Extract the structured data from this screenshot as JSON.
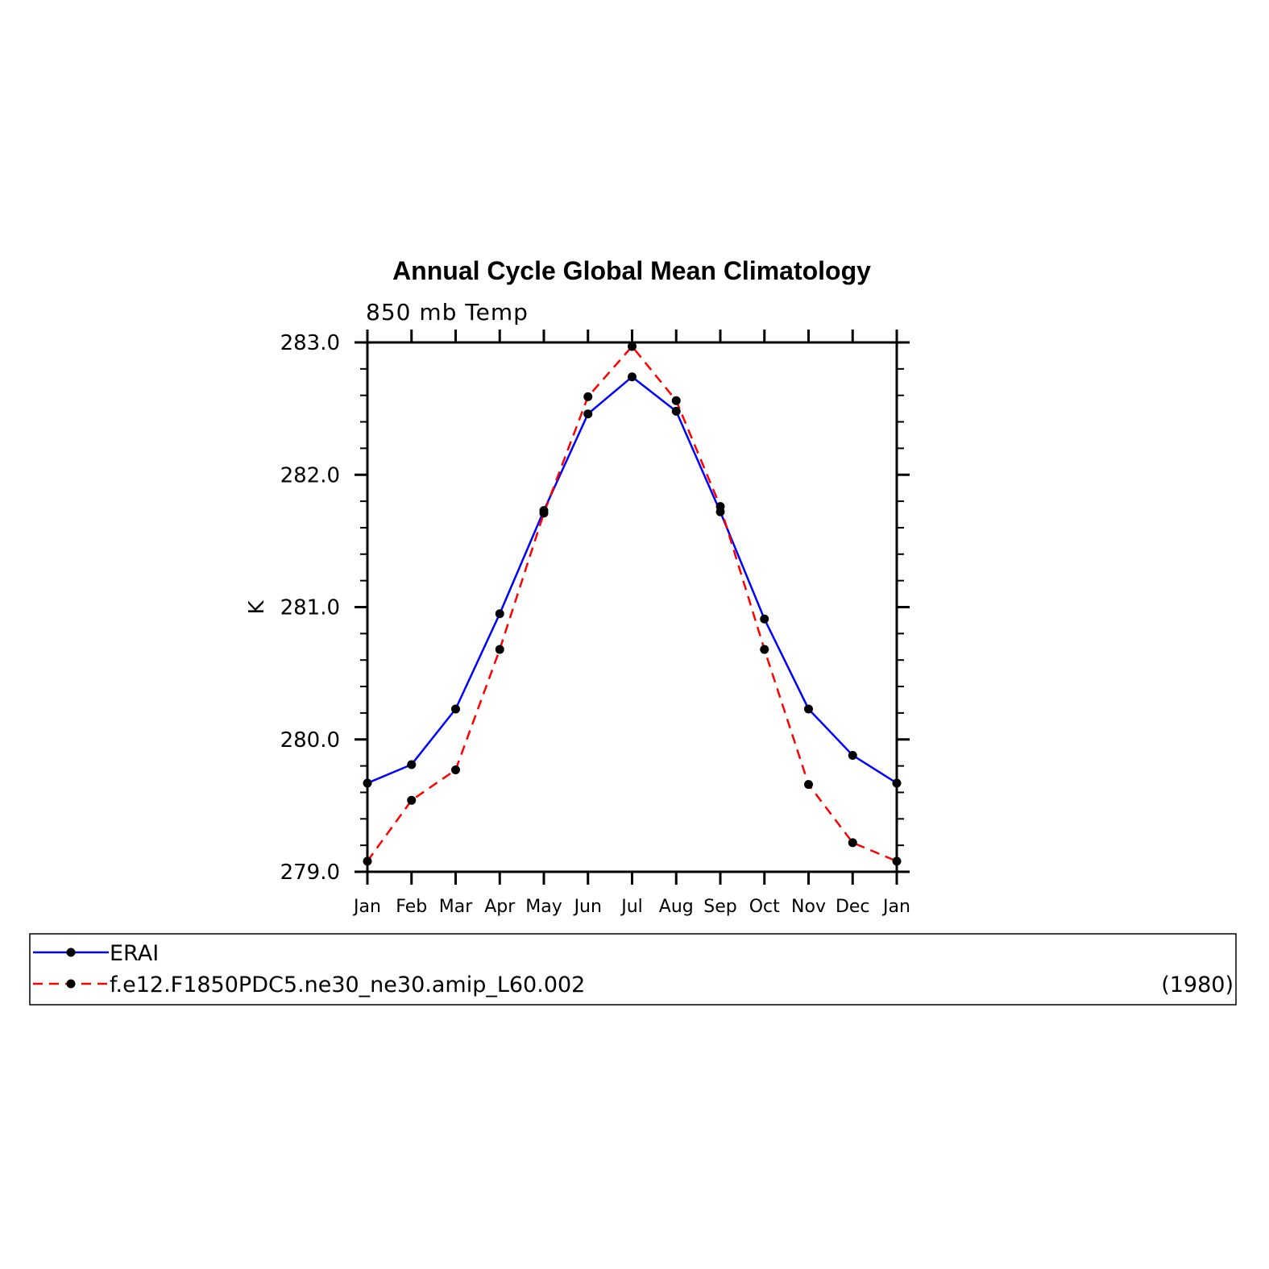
{
  "chart_data": {
    "type": "line",
    "title": "Annual Cycle Global Mean Climatology",
    "subtitle": "850 mb Temp",
    "ylabel": "K",
    "xlabel": "",
    "categories": [
      "Jan",
      "Feb",
      "Mar",
      "Apr",
      "May",
      "Jun",
      "Jul",
      "Aug",
      "Sep",
      "Oct",
      "Nov",
      "Dec",
      "Jan"
    ],
    "ylim": [
      279.0,
      283.0
    ],
    "yticks": [
      "279.0",
      "280.0",
      "281.0",
      "282.0",
      "283.0"
    ],
    "ytick_values": [
      279.0,
      280.0,
      281.0,
      282.0,
      283.0
    ],
    "grid": false,
    "series": [
      {
        "name": "ERAI",
        "color": "#0000ff",
        "dash": "solid",
        "marker": "filled-circle",
        "values": [
          279.67,
          279.81,
          280.23,
          280.95,
          281.73,
          282.46,
          282.74,
          282.48,
          281.72,
          280.91,
          280.23,
          279.88,
          279.67
        ]
      },
      {
        "name": "f.e12.F1850PDC5.ne30_ne30.amip_L60.002",
        "color": "#ff0000",
        "dash": "dashed",
        "marker": "filled-circle",
        "values": [
          279.08,
          279.54,
          279.77,
          280.68,
          281.71,
          282.59,
          282.97,
          282.56,
          281.76,
          280.68,
          279.66,
          279.22,
          279.08
        ]
      }
    ],
    "legend": {
      "placement": "bottom",
      "note": "(1980)"
    }
  }
}
